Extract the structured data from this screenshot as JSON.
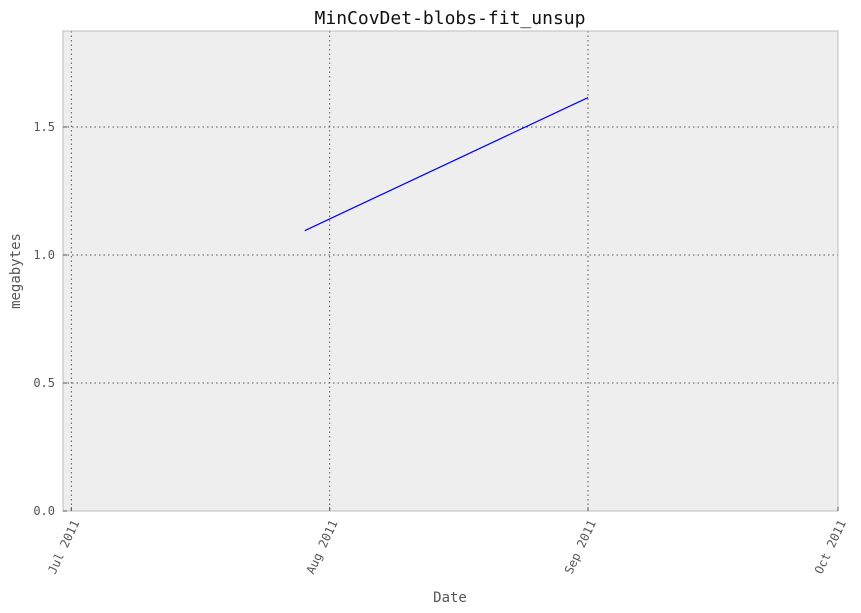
{
  "chart_data": {
    "type": "line",
    "title": "MinCovDet-blobs-fit_unsup",
    "xlabel": "Date",
    "ylabel": "megabytes",
    "x_axis_type": "date",
    "xlim": [
      "2011-06-30",
      "2011-10-01"
    ],
    "ylim": [
      0,
      1.875
    ],
    "x_ticks": [
      {
        "date": "2011-07-01",
        "label": "Jul 2011"
      },
      {
        "date": "2011-08-01",
        "label": "Aug 2011"
      },
      {
        "date": "2011-09-01",
        "label": "Sep 2011"
      },
      {
        "date": "2011-10-01",
        "label": "Oct 2011"
      }
    ],
    "y_ticks": [
      {
        "value": 0.0,
        "label": "0.0"
      },
      {
        "value": 0.5,
        "label": "0.5"
      },
      {
        "value": 1.0,
        "label": "1.0"
      },
      {
        "value": 1.5,
        "label": "1.5"
      }
    ],
    "grid": true,
    "series": [
      {
        "color": "#0000ff",
        "points": [
          {
            "x": "2011-07-29",
            "y": 1.095
          },
          {
            "x": "2011-09-01",
            "y": 1.615
          }
        ]
      }
    ]
  }
}
